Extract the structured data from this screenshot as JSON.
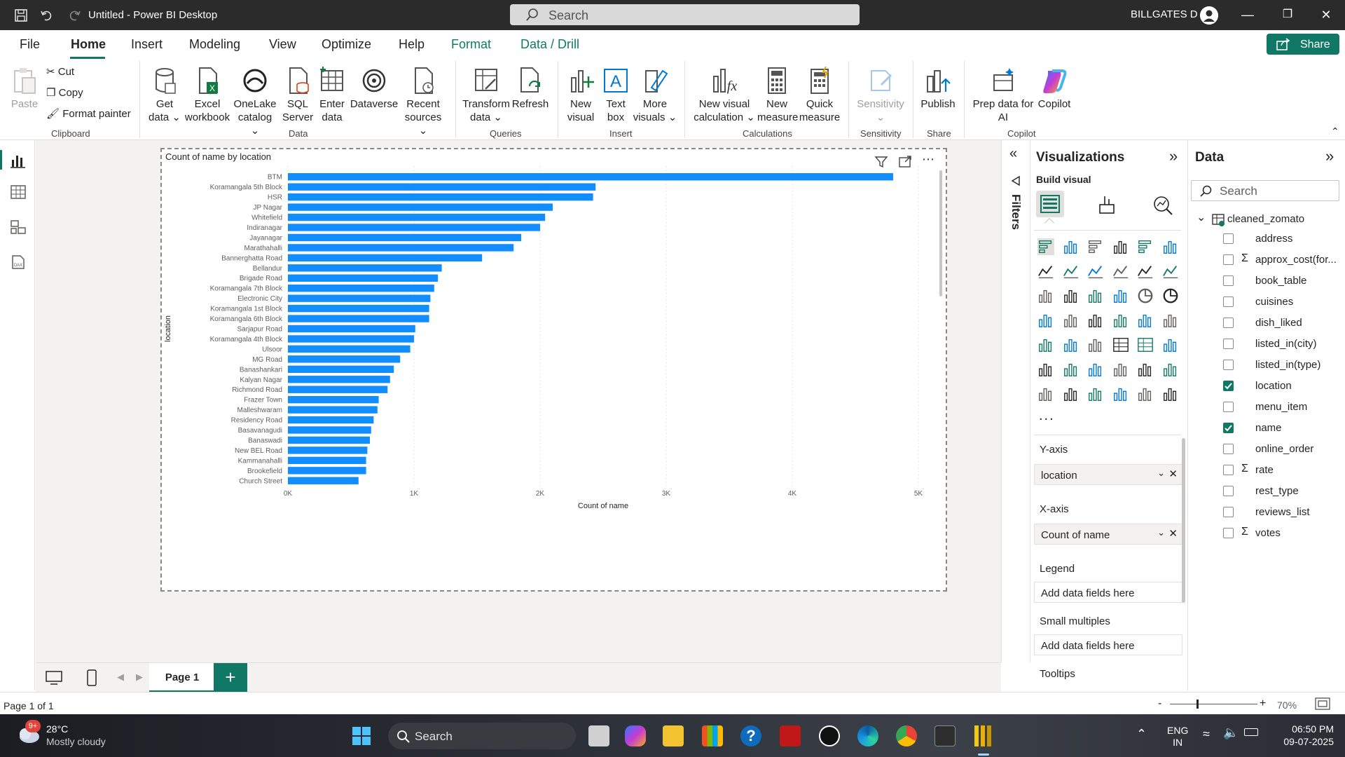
{
  "window": {
    "title": "Untitled - Power BI Desktop",
    "search_placeholder": "Search",
    "user": "BILLGATES D"
  },
  "menu": {
    "items": [
      "File",
      "Home",
      "Insert",
      "Modeling",
      "View",
      "Optimize",
      "Help",
      "Format",
      "Data / Drill"
    ],
    "share_label": "Share"
  },
  "ribbon": {
    "clipboard": {
      "paste": "Paste",
      "cut": "Cut",
      "copy": "Copy",
      "format_painter": "Format painter",
      "group": "Clipboard"
    },
    "data": {
      "get_data": "Get\ndata",
      "excel": "Excel\nworkbook",
      "onelake": "OneLake\ncatalog",
      "sql": "SQL\nServer",
      "enter_data": "Enter\ndata",
      "dataverse": "Dataverse",
      "recent": "Recent\nsources",
      "group": "Data"
    },
    "queries": {
      "transform": "Transform\ndata",
      "refresh": "Refresh",
      "group": "Queries"
    },
    "insert": {
      "new_visual": "New\nvisual",
      "text_box": "Text\nbox",
      "more_visuals": "More\nvisuals",
      "group": "Insert"
    },
    "calculations": {
      "new_visual_calc": "New visual\ncalculation",
      "new_measure": "New\nmeasure",
      "quick_measure": "Quick\nmeasure",
      "group": "Calculations"
    },
    "sensitivity": {
      "label": "Sensitivity",
      "group": "Sensitivity"
    },
    "share": {
      "publish": "Publish",
      "group": "Share"
    },
    "copilot": {
      "prep": "Prep data for\nAI",
      "copilot": "Copilot",
      "group": "Copilot"
    }
  },
  "chart_data": {
    "type": "bar",
    "orientation": "horizontal",
    "title": "Count of name by location",
    "xlabel": "Count of name",
    "ylabel": "location",
    "xlim": [
      0,
      5000
    ],
    "xticks": [
      "0K",
      "1K",
      "2K",
      "3K",
      "4K",
      "5K"
    ],
    "categories": [
      "BTM",
      "Koramangala 5th Block",
      "HSR",
      "JP Nagar",
      "Whitefield",
      "Indiranagar",
      "Jayanagar",
      "Marathahalli",
      "Bannerghatta Road",
      "Bellandur",
      "Brigade Road",
      "Koramangala 7th Block",
      "Electronic City",
      "Koramangala 1st Block",
      "Koramangala 6th Block",
      "Sarjapur Road",
      "Koramangala 4th Block",
      "Ulsoor",
      "MG Road",
      "Banashankari",
      "Kalyan Nagar",
      "Richmond Road",
      "Frazer Town",
      "Malleshwaram",
      "Residency Road",
      "Basavanagudi",
      "Banaswadi",
      "New BEL Road",
      "Kammanahalli",
      "Brookefield",
      "Church Street"
    ],
    "values": [
      4800,
      2440,
      2420,
      2100,
      2040,
      2000,
      1850,
      1790,
      1540,
      1220,
      1190,
      1160,
      1130,
      1120,
      1120,
      1010,
      1000,
      970,
      890,
      840,
      810,
      790,
      720,
      710,
      680,
      660,
      650,
      630,
      620,
      620,
      560
    ],
    "grid": true,
    "bar_color": "#118dff"
  },
  "viz_pane": {
    "title": "Visualizations",
    "build_label": "Build visual",
    "more": "...",
    "yaxis_label": "Y-axis",
    "yaxis_field": "location",
    "xaxis_label": "X-axis",
    "xaxis_field": "Count of name",
    "legend_label": "Legend",
    "legend_placeholder": "Add data fields here",
    "small_multiples_label": "Small multiples",
    "small_multiples_placeholder": "Add data fields here",
    "tooltips_label": "Tooltips"
  },
  "filters_label": "Filters",
  "data_pane": {
    "title": "Data",
    "search_placeholder": "Search",
    "table": "cleaned_zomato",
    "fields": [
      {
        "name": "address",
        "checked": false,
        "sigma": false
      },
      {
        "name": "approx_cost(for...",
        "checked": false,
        "sigma": true
      },
      {
        "name": "book_table",
        "checked": false,
        "sigma": false
      },
      {
        "name": "cuisines",
        "checked": false,
        "sigma": false
      },
      {
        "name": "dish_liked",
        "checked": false,
        "sigma": false
      },
      {
        "name": "listed_in(city)",
        "checked": false,
        "sigma": false
      },
      {
        "name": "listed_in(type)",
        "checked": false,
        "sigma": false
      },
      {
        "name": "location",
        "checked": true,
        "sigma": false
      },
      {
        "name": "menu_item",
        "checked": false,
        "sigma": false
      },
      {
        "name": "name",
        "checked": true,
        "sigma": false
      },
      {
        "name": "online_order",
        "checked": false,
        "sigma": false
      },
      {
        "name": "rate",
        "checked": false,
        "sigma": true
      },
      {
        "name": "rest_type",
        "checked": false,
        "sigma": false
      },
      {
        "name": "reviews_list",
        "checked": false,
        "sigma": false
      },
      {
        "name": "votes",
        "checked": false,
        "sigma": true
      }
    ]
  },
  "pages": {
    "tab": "Page 1",
    "add": "+"
  },
  "status": {
    "page_info": "Page 1 of 1",
    "zoom": "70%",
    "zoom_minus": "-",
    "zoom_plus": "+"
  },
  "taskbar": {
    "temp": "28°C",
    "weather": "Mostly cloudy",
    "badge": "9+",
    "search": "Search",
    "lang1": "ENG",
    "lang2": "IN",
    "time": "06:50 PM",
    "date": "09-07-2025"
  }
}
